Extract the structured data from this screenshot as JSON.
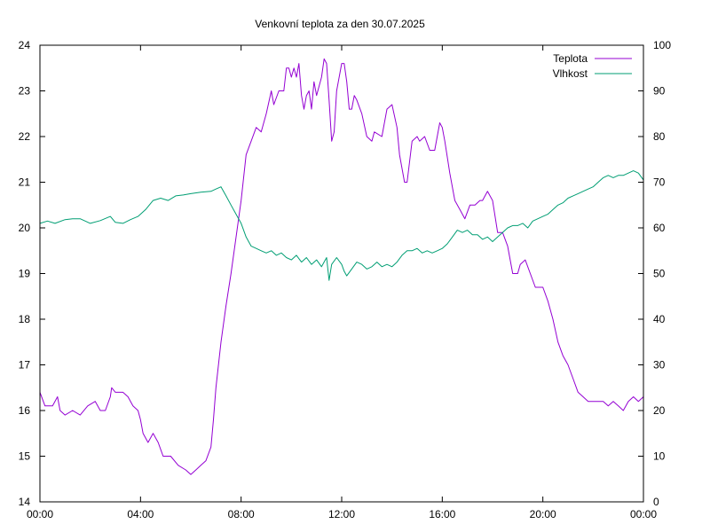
{
  "chart_data": {
    "type": "line",
    "title": "Venkovní teplota za den 30.07.2025",
    "x_ticks": [
      "00:00",
      "04:00",
      "08:00",
      "12:00",
      "16:00",
      "20:00",
      "00:00"
    ],
    "xlim_hours": [
      0,
      24
    ],
    "y_left": {
      "ylim": [
        14,
        24
      ],
      "ticks": [
        14,
        15,
        16,
        17,
        18,
        19,
        20,
        21,
        22,
        23,
        24
      ]
    },
    "y_right": {
      "ylim": [
        0,
        100
      ],
      "ticks": [
        0,
        10,
        20,
        30,
        40,
        50,
        60,
        70,
        80,
        90,
        100
      ]
    },
    "grid": false,
    "legend_position": "top-right",
    "series": [
      {
        "name": "Teplota",
        "axis": "left",
        "color": "#9400d3",
        "points": [
          [
            0.0,
            16.4
          ],
          [
            0.2,
            16.1
          ],
          [
            0.5,
            16.1
          ],
          [
            0.7,
            16.3
          ],
          [
            0.8,
            16.0
          ],
          [
            1.0,
            15.9
          ],
          [
            1.3,
            16.0
          ],
          [
            1.6,
            15.9
          ],
          [
            1.9,
            16.1
          ],
          [
            2.2,
            16.2
          ],
          [
            2.4,
            16.0
          ],
          [
            2.6,
            16.0
          ],
          [
            2.8,
            16.3
          ],
          [
            2.85,
            16.5
          ],
          [
            3.0,
            16.4
          ],
          [
            3.3,
            16.4
          ],
          [
            3.5,
            16.3
          ],
          [
            3.7,
            16.1
          ],
          [
            3.9,
            16.0
          ],
          [
            4.0,
            15.8
          ],
          [
            4.1,
            15.5
          ],
          [
            4.3,
            15.3
          ],
          [
            4.5,
            15.5
          ],
          [
            4.7,
            15.3
          ],
          [
            4.9,
            15.0
          ],
          [
            5.2,
            15.0
          ],
          [
            5.5,
            14.8
          ],
          [
            5.8,
            14.7
          ],
          [
            6.0,
            14.6
          ],
          [
            6.2,
            14.7
          ],
          [
            6.4,
            14.8
          ],
          [
            6.6,
            14.9
          ],
          [
            6.8,
            15.2
          ],
          [
            6.9,
            15.8
          ],
          [
            7.0,
            16.5
          ],
          [
            7.2,
            17.5
          ],
          [
            7.4,
            18.3
          ],
          [
            7.6,
            19.0
          ],
          [
            7.8,
            19.8
          ],
          [
            8.0,
            20.6
          ],
          [
            8.2,
            21.6
          ],
          [
            8.4,
            21.9
          ],
          [
            8.6,
            22.2
          ],
          [
            8.8,
            22.1
          ],
          [
            9.0,
            22.5
          ],
          [
            9.2,
            23.0
          ],
          [
            9.3,
            22.7
          ],
          [
            9.5,
            23.0
          ],
          [
            9.7,
            23.0
          ],
          [
            9.8,
            23.5
          ],
          [
            9.9,
            23.5
          ],
          [
            10.0,
            23.3
          ],
          [
            10.1,
            23.5
          ],
          [
            10.2,
            23.3
          ],
          [
            10.3,
            23.6
          ],
          [
            10.4,
            22.9
          ],
          [
            10.5,
            22.6
          ],
          [
            10.6,
            22.9
          ],
          [
            10.7,
            23.0
          ],
          [
            10.8,
            22.6
          ],
          [
            10.9,
            23.2
          ],
          [
            11.0,
            22.9
          ],
          [
            11.2,
            23.3
          ],
          [
            11.3,
            23.7
          ],
          [
            11.4,
            23.6
          ],
          [
            11.5,
            22.8
          ],
          [
            11.6,
            21.9
          ],
          [
            11.7,
            22.1
          ],
          [
            11.8,
            23.0
          ],
          [
            12.0,
            23.6
          ],
          [
            12.1,
            23.6
          ],
          [
            12.2,
            23.2
          ],
          [
            12.3,
            22.6
          ],
          [
            12.4,
            22.6
          ],
          [
            12.5,
            22.9
          ],
          [
            12.6,
            22.8
          ],
          [
            12.8,
            22.5
          ],
          [
            13.0,
            22.0
          ],
          [
            13.2,
            21.9
          ],
          [
            13.3,
            22.1
          ],
          [
            13.6,
            22.0
          ],
          [
            13.8,
            22.6
          ],
          [
            14.0,
            22.7
          ],
          [
            14.2,
            22.2
          ],
          [
            14.3,
            21.6
          ],
          [
            14.5,
            21.0
          ],
          [
            14.6,
            21.0
          ],
          [
            14.8,
            21.9
          ],
          [
            15.0,
            22.0
          ],
          [
            15.1,
            21.9
          ],
          [
            15.3,
            22.0
          ],
          [
            15.5,
            21.7
          ],
          [
            15.7,
            21.7
          ],
          [
            15.9,
            22.3
          ],
          [
            16.0,
            22.2
          ],
          [
            16.1,
            21.9
          ],
          [
            16.3,
            21.2
          ],
          [
            16.5,
            20.6
          ],
          [
            16.7,
            20.4
          ],
          [
            16.9,
            20.2
          ],
          [
            17.1,
            20.5
          ],
          [
            17.3,
            20.5
          ],
          [
            17.5,
            20.6
          ],
          [
            17.6,
            20.6
          ],
          [
            17.8,
            20.8
          ],
          [
            18.0,
            20.6
          ],
          [
            18.2,
            19.9
          ],
          [
            18.4,
            19.9
          ],
          [
            18.6,
            19.6
          ],
          [
            18.8,
            19.0
          ],
          [
            19.0,
            19.0
          ],
          [
            19.1,
            19.2
          ],
          [
            19.3,
            19.3
          ],
          [
            19.5,
            19.0
          ],
          [
            19.7,
            18.7
          ],
          [
            20.0,
            18.7
          ],
          [
            20.2,
            18.4
          ],
          [
            20.4,
            18.0
          ],
          [
            20.6,
            17.5
          ],
          [
            20.8,
            17.2
          ],
          [
            21.0,
            17.0
          ],
          [
            21.2,
            16.7
          ],
          [
            21.4,
            16.4
          ],
          [
            21.6,
            16.3
          ],
          [
            21.8,
            16.2
          ],
          [
            22.0,
            16.2
          ],
          [
            22.2,
            16.2
          ],
          [
            22.4,
            16.2
          ],
          [
            22.6,
            16.1
          ],
          [
            22.8,
            16.2
          ],
          [
            23.0,
            16.1
          ],
          [
            23.2,
            16.0
          ],
          [
            23.4,
            16.2
          ],
          [
            23.6,
            16.3
          ],
          [
            23.8,
            16.2
          ],
          [
            24.0,
            16.3
          ]
        ]
      },
      {
        "name": "Vlhkost",
        "axis": "right",
        "color": "#009e73",
        "points": [
          [
            0.0,
            61.0
          ],
          [
            0.3,
            61.5
          ],
          [
            0.6,
            61.0
          ],
          [
            1.0,
            61.8
          ],
          [
            1.3,
            62.0
          ],
          [
            1.6,
            62.0
          ],
          [
            2.0,
            61.0
          ],
          [
            2.4,
            61.6
          ],
          [
            2.8,
            62.5
          ],
          [
            3.0,
            61.2
          ],
          [
            3.3,
            61.0
          ],
          [
            3.6,
            61.8
          ],
          [
            3.9,
            62.5
          ],
          [
            4.2,
            64.0
          ],
          [
            4.5,
            66.0
          ],
          [
            4.8,
            66.5
          ],
          [
            5.1,
            66.0
          ],
          [
            5.4,
            67.0
          ],
          [
            5.7,
            67.2
          ],
          [
            6.0,
            67.5
          ],
          [
            6.4,
            67.8
          ],
          [
            6.8,
            68.0
          ],
          [
            7.0,
            68.5
          ],
          [
            7.2,
            69.0
          ],
          [
            7.4,
            67.0
          ],
          [
            7.6,
            65.0
          ],
          [
            7.8,
            63.0
          ],
          [
            8.0,
            61.0
          ],
          [
            8.2,
            58.0
          ],
          [
            8.4,
            56.0
          ],
          [
            8.6,
            55.5
          ],
          [
            8.8,
            55.0
          ],
          [
            9.0,
            54.5
          ],
          [
            9.2,
            55.0
          ],
          [
            9.4,
            54.0
          ],
          [
            9.6,
            54.5
          ],
          [
            9.8,
            53.5
          ],
          [
            10.0,
            53.0
          ],
          [
            10.2,
            54.0
          ],
          [
            10.4,
            52.5
          ],
          [
            10.6,
            53.5
          ],
          [
            10.8,
            52.0
          ],
          [
            11.0,
            53.0
          ],
          [
            11.2,
            51.5
          ],
          [
            11.4,
            53.5
          ],
          [
            11.5,
            48.5
          ],
          [
            11.6,
            52.0
          ],
          [
            11.8,
            53.5
          ],
          [
            12.0,
            52.0
          ],
          [
            12.1,
            50.5
          ],
          [
            12.2,
            49.5
          ],
          [
            12.4,
            51.0
          ],
          [
            12.6,
            52.5
          ],
          [
            12.8,
            52.0
          ],
          [
            13.0,
            51.0
          ],
          [
            13.2,
            51.5
          ],
          [
            13.4,
            52.5
          ],
          [
            13.6,
            51.5
          ],
          [
            13.8,
            52.0
          ],
          [
            14.0,
            51.5
          ],
          [
            14.2,
            52.5
          ],
          [
            14.4,
            54.0
          ],
          [
            14.6,
            55.0
          ],
          [
            14.8,
            55.0
          ],
          [
            15.0,
            55.5
          ],
          [
            15.2,
            54.5
          ],
          [
            15.4,
            55.0
          ],
          [
            15.6,
            54.5
          ],
          [
            15.8,
            55.0
          ],
          [
            16.0,
            55.5
          ],
          [
            16.2,
            56.5
          ],
          [
            16.4,
            58.0
          ],
          [
            16.6,
            59.5
          ],
          [
            16.8,
            59.0
          ],
          [
            17.0,
            59.5
          ],
          [
            17.2,
            58.5
          ],
          [
            17.4,
            58.5
          ],
          [
            17.6,
            57.5
          ],
          [
            17.8,
            58.0
          ],
          [
            18.0,
            57.0
          ],
          [
            18.2,
            58.0
          ],
          [
            18.4,
            59.0
          ],
          [
            18.6,
            60.0
          ],
          [
            18.8,
            60.5
          ],
          [
            19.0,
            60.5
          ],
          [
            19.2,
            61.0
          ],
          [
            19.4,
            60.0
          ],
          [
            19.6,
            61.5
          ],
          [
            19.8,
            62.0
          ],
          [
            20.0,
            62.5
          ],
          [
            20.2,
            63.0
          ],
          [
            20.4,
            64.0
          ],
          [
            20.6,
            65.0
          ],
          [
            20.8,
            65.5
          ],
          [
            21.0,
            66.5
          ],
          [
            21.2,
            67.0
          ],
          [
            21.4,
            67.5
          ],
          [
            21.6,
            68.0
          ],
          [
            21.8,
            68.5
          ],
          [
            22.0,
            69.0
          ],
          [
            22.2,
            70.0
          ],
          [
            22.4,
            71.0
          ],
          [
            22.6,
            71.5
          ],
          [
            22.8,
            71.0
          ],
          [
            23.0,
            71.5
          ],
          [
            23.2,
            71.5
          ],
          [
            23.4,
            72.0
          ],
          [
            23.6,
            72.5
          ],
          [
            23.8,
            72.0
          ],
          [
            24.0,
            70.5
          ]
        ]
      }
    ]
  }
}
